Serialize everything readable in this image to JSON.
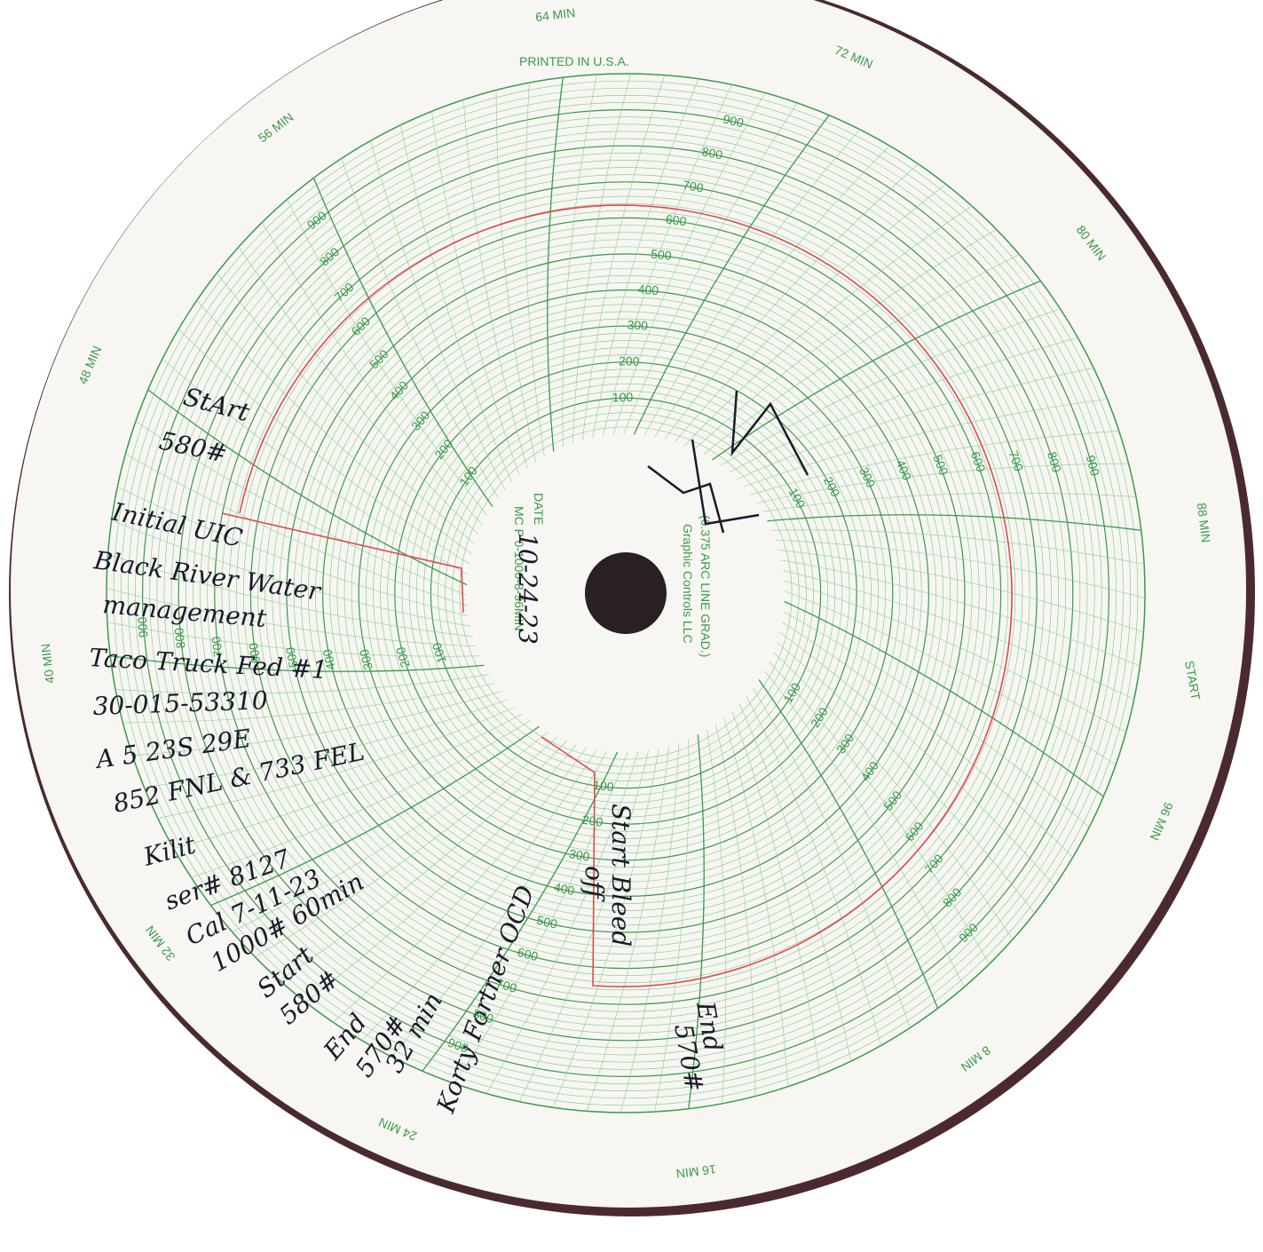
{
  "printed": {
    "printed_in": "PRINTED IN U.S.A.",
    "maker": "Graphic Controls LLC",
    "grad": "(6.375 ARC LINE GRAD.)",
    "date_label": "DATE",
    "chart_no": "MC P 0-1000-8-96MIN",
    "start": "START"
  },
  "time_labels": [
    {
      "value": 72,
      "label": "72 MIN"
    },
    {
      "value": 80,
      "label": "80 MIN"
    },
    {
      "value": 88,
      "label": "88 MIN"
    },
    {
      "value": 96,
      "label": "96 MIN"
    },
    {
      "value": 8,
      "label": "8 MIN"
    },
    {
      "value": 16,
      "label": "16 MIN"
    },
    {
      "value": 24,
      "label": "24 MIN"
    },
    {
      "value": 32,
      "label": "32 MIN"
    },
    {
      "value": 40,
      "label": "40 MIN"
    },
    {
      "value": 48,
      "label": "48 MIN"
    },
    {
      "value": 56,
      "label": "56 MIN"
    },
    {
      "value": 64,
      "label": "64 MIN"
    }
  ],
  "scale": [
    100,
    200,
    300,
    400,
    500,
    600,
    700,
    800,
    900
  ],
  "handwritten": {
    "date": "10-24-23",
    "start1": "StArt",
    "start1_value": "580#",
    "line1": "Initial UIC",
    "line2": "Black River Water",
    "line3": "management",
    "line4": "Taco Truck Fed #1",
    "line5": "30-015-53310",
    "line6": "A 5 23S 29E",
    "line7": "852 FNL & 733 FEL",
    "line8": "Kilit",
    "line9": "ser# 8127",
    "line10": "Cal 7-11-23",
    "line11": "1000# 60min",
    "line12": "Start",
    "line13": "580#",
    "line14": "End",
    "line15": "570#",
    "line16": "32 min",
    "line17": "Korty Fortner OCD",
    "bleed1": "Start Bleed",
    "bleed2": "off",
    "end2": "End",
    "end2_value": "570#"
  }
}
